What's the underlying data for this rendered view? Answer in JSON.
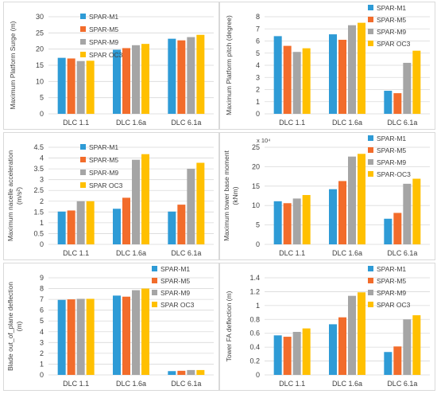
{
  "colors": {
    "SPAR-M1": "#2e9bd6",
    "SPAR-M5": "#f26c2b",
    "SPAR-M9": "#a5a5a5",
    "SPAR OC3": "#ffc000",
    "SPAR-OC3": "#ffc000",
    "grid": "#d9d9d9",
    "border": "#d9d9d9",
    "text": "#404040"
  },
  "chart_data": [
    {
      "type": "bar",
      "categories": [
        "DLC 1.1",
        "DLC 1.6a",
        "DLC 6.1a"
      ],
      "ylabel": "Maximum Platform Surge (m)",
      "ylim": [
        0,
        30
      ],
      "yticks": [
        "0",
        "5",
        "10",
        "15",
        "20",
        "25",
        "30"
      ],
      "legend_position": "top-left",
      "series": [
        {
          "name": "SPAR-M1",
          "values": [
            17.3,
            19.8,
            23.2
          ]
        },
        {
          "name": "SPAR-M5",
          "values": [
            17.1,
            20.3,
            22.7
          ]
        },
        {
          "name": "SPAR-M9",
          "values": [
            16.3,
            21.2,
            23.7
          ]
        },
        {
          "name": "SPAR OC3",
          "values": [
            16.4,
            21.6,
            24.4
          ]
        }
      ]
    },
    {
      "type": "bar",
      "categories": [
        "DLC 1.1",
        "DLC 1.6a",
        "DLC 6.1a"
      ],
      "ylabel": "Maximum Platform pitch (degree)",
      "ylim": [
        0,
        8
      ],
      "yticks": [
        "0",
        "1",
        "2",
        "3",
        "4",
        "5",
        "6",
        "7",
        "8"
      ],
      "legend_position": "top-right",
      "series": [
        {
          "name": "SPAR-M1",
          "values": [
            6.4,
            6.55,
            1.9
          ]
        },
        {
          "name": "SPAR-M5",
          "values": [
            5.6,
            6.1,
            1.7
          ]
        },
        {
          "name": "SPAR-M9",
          "values": [
            5.1,
            7.3,
            4.2
          ]
        },
        {
          "name": "SPAR OC3",
          "values": [
            5.4,
            7.5,
            5.2
          ]
        }
      ]
    },
    {
      "type": "bar",
      "categories": [
        "DLC 1.1",
        "DLC 1.6a",
        "DLC 6.1a"
      ],
      "ylabel": "Maximum nacelle acceleration",
      "ylabel2": "(m/s²)",
      "ylim": [
        0,
        4.5
      ],
      "yticks": [
        "0",
        "0.5",
        "1",
        "1.5",
        "2",
        "2.5",
        "3",
        "3.5",
        "4",
        "4.5"
      ],
      "legend_position": "top-left",
      "series": [
        {
          "name": "SPAR-M1",
          "values": [
            1.52,
            1.65,
            1.52
          ]
        },
        {
          "name": "SPAR-M5",
          "values": [
            1.57,
            2.16,
            1.84
          ]
        },
        {
          "name": "SPAR-M9",
          "values": [
            2.0,
            3.92,
            3.5
          ]
        },
        {
          "name": "SPAR OC3",
          "values": [
            2.0,
            4.18,
            3.78
          ]
        }
      ]
    },
    {
      "type": "bar",
      "categories": [
        "DLC 1.1",
        "DLC 1.6a",
        "DLC 6.1a"
      ],
      "ylabel": "Maximum tower base moment",
      "ylabel2": "(kNm)",
      "scale_note": "x 10⁴",
      "ylim": [
        0,
        25
      ],
      "yticks": [
        "0",
        "5",
        "10",
        "15",
        "20",
        "25"
      ],
      "legend_position": "top-right",
      "series": [
        {
          "name": "SPAR-M1",
          "values": [
            11.1,
            14.2,
            6.6
          ]
        },
        {
          "name": "SPAR-M5",
          "values": [
            10.6,
            16.3,
            8.1
          ]
        },
        {
          "name": "SPAR-M9",
          "values": [
            11.8,
            22.6,
            15.6
          ]
        },
        {
          "name": "SPAR-OC3",
          "values": [
            12.7,
            23.3,
            16.9
          ]
        }
      ]
    },
    {
      "type": "bar",
      "categories": [
        "DLC 1.1",
        "DLC 1.6a",
        "DLC 6.1a"
      ],
      "ylabel": "Blade out_of_plane deflection",
      "ylabel2": "(m)",
      "ylim": [
        0,
        9
      ],
      "yticks": [
        "0",
        "1",
        "2",
        "3",
        "4",
        "5",
        "6",
        "7",
        "8",
        "9"
      ],
      "legend_position": "top-right",
      "series": [
        {
          "name": "SPAR-M1",
          "values": [
            6.95,
            7.35,
            0.35
          ]
        },
        {
          "name": "SPAR-M5",
          "values": [
            7.0,
            7.25,
            0.38
          ]
        },
        {
          "name": "SPAR-M9",
          "values": [
            7.05,
            7.85,
            0.45
          ]
        },
        {
          "name": "SPAR OC3",
          "values": [
            7.05,
            8.0,
            0.45
          ]
        }
      ]
    },
    {
      "type": "bar",
      "categories": [
        "DLC 1.1",
        "DLC 1.6a",
        "DLC 6.1a"
      ],
      "ylabel": "Tower FA deflection (m)",
      "ylim": [
        0,
        1.4
      ],
      "yticks": [
        "0",
        "0.2",
        "0.4",
        "0.6",
        "0.8",
        "1",
        "1.2",
        "1.4"
      ],
      "legend_position": "top-right",
      "series": [
        {
          "name": "SPAR-M1",
          "values": [
            0.57,
            0.73,
            0.33
          ]
        },
        {
          "name": "SPAR-M5",
          "values": [
            0.55,
            0.83,
            0.41
          ]
        },
        {
          "name": "SPAR-M9",
          "values": [
            0.62,
            1.14,
            0.8
          ]
        },
        {
          "name": "SPAR OC3",
          "values": [
            0.67,
            1.19,
            0.86
          ]
        }
      ]
    }
  ]
}
